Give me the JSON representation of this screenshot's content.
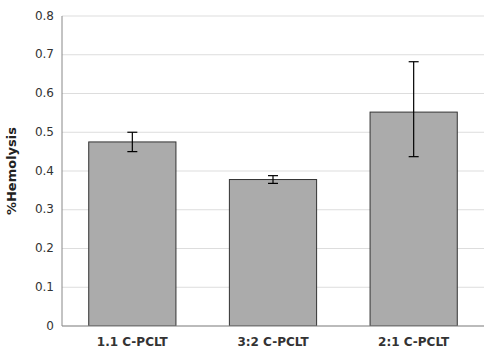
{
  "chart_data": {
    "type": "bar",
    "categories": [
      "1.1 C-PCLT",
      "3:2 C-PCLT",
      "2:1 C-PCLT"
    ],
    "values": [
      0.475,
      0.378,
      0.552
    ],
    "errors_upper": [
      0.025,
      0.01,
      0.13
    ],
    "errors_lower": [
      0.025,
      0.01,
      0.115
    ],
    "color": "#ABABAB",
    "ylabel": "%Hemolysis",
    "ylim": [
      0,
      0.8
    ],
    "yticks": [
      0,
      0.1,
      0.2,
      0.3,
      0.4,
      0.5,
      0.6,
      0.7,
      0.8
    ],
    "grid": true
  }
}
